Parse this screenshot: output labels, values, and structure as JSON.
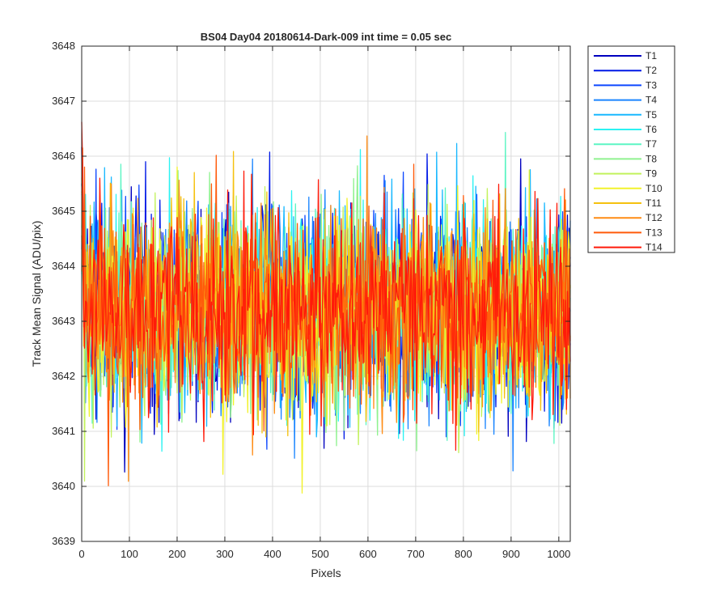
{
  "chart_data": {
    "type": "line",
    "title": "BS04 Day04 20180614-Dark-009 int time = 0.05 sec",
    "xlabel": "Pixels",
    "ylabel": "Track Mean Signal (ADU/pix)",
    "xlim": [
      0,
      1024
    ],
    "ylim": [
      3639,
      3648
    ],
    "xticks": [
      0,
      100,
      200,
      300,
      400,
      500,
      600,
      700,
      800,
      900,
      1000
    ],
    "yticks": [
      3639,
      3640,
      3641,
      3642,
      3643,
      3644,
      3645,
      3646,
      3647,
      3648
    ],
    "grid": true,
    "legend_position": "outside-top-right",
    "noise_model": {
      "mean": 3643.2,
      "std": 0.9,
      "min": 3639.3,
      "max": 3647.4
    },
    "series": [
      {
        "name": "T1",
        "color": "#0000bf"
      },
      {
        "name": "T2",
        "color": "#0019e6"
      },
      {
        "name": "T3",
        "color": "#0d47ff"
      },
      {
        "name": "T4",
        "color": "#1a85ff"
      },
      {
        "name": "T5",
        "color": "#19b8ff"
      },
      {
        "name": "T6",
        "color": "#2bf2f2"
      },
      {
        "name": "T7",
        "color": "#5cf5c3"
      },
      {
        "name": "T8",
        "color": "#8ff28f"
      },
      {
        "name": "T9",
        "color": "#c2f25c"
      },
      {
        "name": "T10",
        "color": "#f2f22b"
      },
      {
        "name": "T11",
        "color": "#f5c10f"
      },
      {
        "name": "T12",
        "color": "#ff8c14"
      },
      {
        "name": "T13",
        "color": "#ff5a0a"
      },
      {
        "name": "T14",
        "color": "#ff1a0a"
      }
    ]
  }
}
